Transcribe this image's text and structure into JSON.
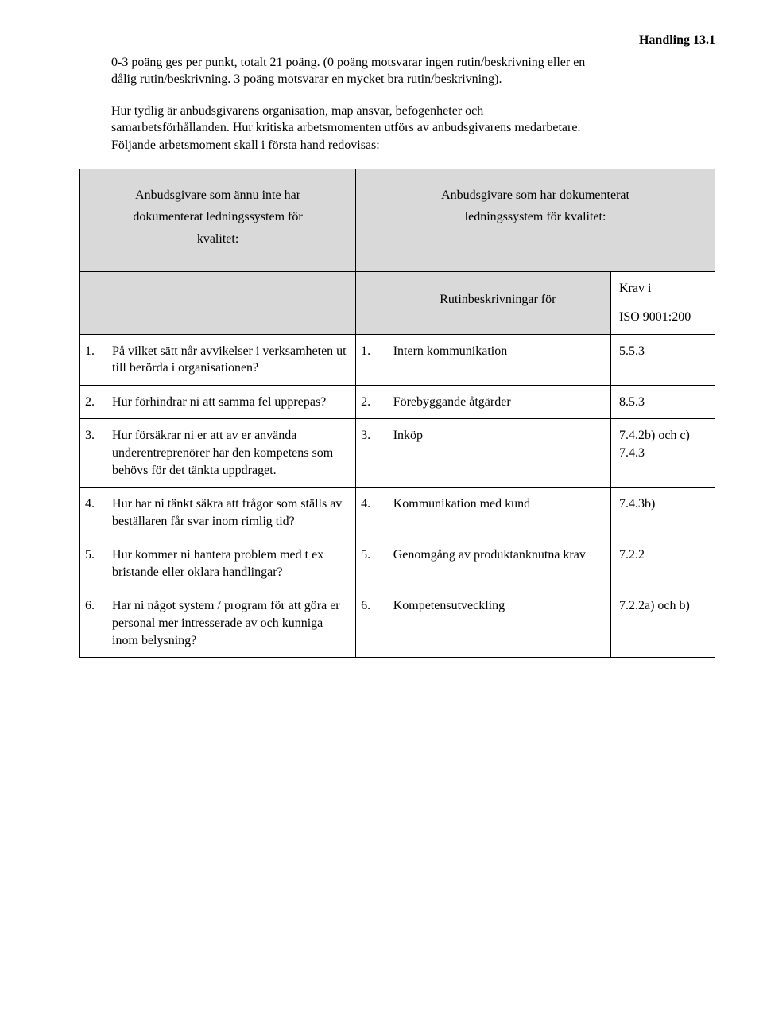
{
  "header": {
    "doc_ref": "Handling 13.1"
  },
  "paragraphs": {
    "p1": "0-3 poäng ges per punkt, totalt 21 poäng. (0 poäng motsvarar ingen rutin/beskrivning eller en dålig rutin/beskrivning. 3 poäng motsvarar en mycket bra rutin/beskrivning).",
    "p2": "Hur tydlig är anbudsgivarens organisation, map ansvar, befogenheter och samarbetsförhållanden. Hur kritiska arbetsmomenten utförs av anbudsgivarens medarbetare. Följande arbetsmoment skall i första hand redovisas:"
  },
  "table": {
    "head_left": {
      "l1": "Anbudsgivare som ännu inte har",
      "l2": "dokumenterat ledningssystem för",
      "l3": "kvalitet:"
    },
    "head_right": {
      "l1": "Anbudsgivare som har dokumenterat",
      "l2": "ledningssystem för kvalitet:"
    },
    "subhead": {
      "rutin": "Rutinbeskrivningar för",
      "krav": "Krav i",
      "iso": "ISO 9001:200"
    },
    "rows": [
      {
        "n": "1.",
        "q": "På vilket sätt når avvikelser i verksamheten ut till berörda i organisationen?",
        "n2": "1.",
        "r": "Intern kommunikation",
        "iso": "5.5.3"
      },
      {
        "n": "2.",
        "q": "Hur förhindrar ni att samma fel upprepas?",
        "n2": "2.",
        "r": "Förebyggande åtgärder",
        "iso": "8.5.3"
      },
      {
        "n": "3.",
        "q": "Hur försäkrar ni er att av er använda underentreprenörer har den kompetens som behövs för det tänkta uppdraget.",
        "n2": "3.",
        "r": "Inköp",
        "iso": "7.4.2b) och c) 7.4.3"
      },
      {
        "n": "4.",
        "q": "Hur har ni tänkt säkra att frågor som ställs av beställaren får svar inom rimlig tid?",
        "n2": "4.",
        "r": "Kommunikation med kund",
        "iso": "7.4.3b)"
      },
      {
        "n": "5.",
        "q": "Hur kommer ni hantera problem med t ex bristande eller oklara handlingar?",
        "n2": "5.",
        "r": "Genomgång av produktanknutna krav",
        "iso": "7.2.2"
      },
      {
        "n": "6.",
        "q": "Har ni något system / program för att göra er personal mer intresserade av och kunniga inom belysning?",
        "n2": "6.",
        "r": "Kompetensutveckling",
        "iso": "7.2.2a) och b)"
      }
    ]
  }
}
